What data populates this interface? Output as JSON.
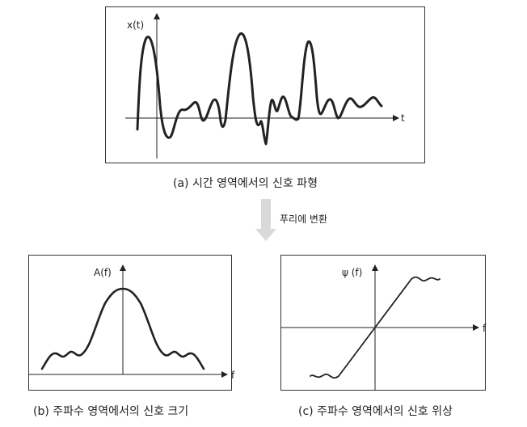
{
  "panels": {
    "a": {
      "y_label": "x(t)",
      "x_label": "t",
      "caption": "(a) 시간 영역에서의 신호 파형"
    },
    "b": {
      "y_label": "A(f)",
      "x_label": "f",
      "caption": "(b) 주파수 영역에서의 신호 크기"
    },
    "c": {
      "y_label": "ψ (f)",
      "x_label": "f",
      "caption": "(c) 주파수 영역에서의 신호 위상"
    }
  },
  "transform_label": "푸리에 변환",
  "colors": {
    "stroke": "#222222",
    "arrow": "#d9d9d9"
  }
}
